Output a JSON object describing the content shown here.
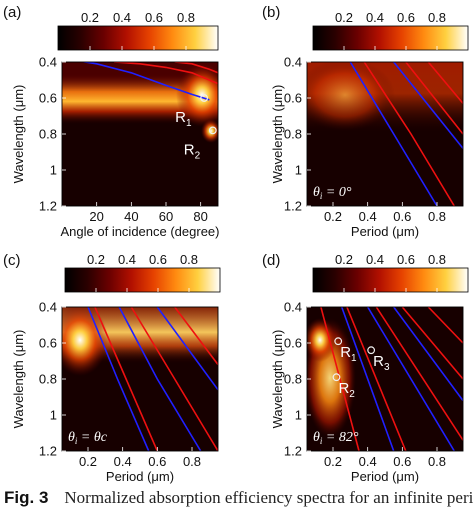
{
  "colormap": [
    "#000000",
    "#2a0000",
    "#6a0000",
    "#b21000",
    "#e64200",
    "#ff8a10",
    "#ffd040",
    "#ffffff"
  ],
  "line_colors": {
    "blue": "#2020ff",
    "red": "#ee1010"
  },
  "caption": {
    "fig_label": "Fig. 3",
    "text": "Normalized absorption efficiency spectra for an infinite peri"
  },
  "chart_data": [
    {
      "panel_label": "(a)",
      "type": "heatmap",
      "title": "",
      "xlabel": "Angle of incidence (degree)",
      "ylabel": "Wavelength (μm)",
      "xlim": [
        0,
        90
      ],
      "ylim": [
        0.4,
        1.2
      ],
      "y_inverted": true,
      "xticks": [
        "20",
        "40",
        "60",
        "80"
      ],
      "yticks": [
        "0.4",
        "0.6",
        "0.8",
        "1",
        "1.2"
      ],
      "colorbar": {
        "ticks": [
          "0.2",
          "0.4",
          "0.6",
          "0.8"
        ],
        "range": [
          0,
          1
        ]
      },
      "features": [
        {
          "name": "bright band",
          "x": [
            0,
            90
          ],
          "wavelength": 0.6
        },
        {
          "name": "hot spot",
          "x": 85,
          "wavelength": 0.78
        }
      ],
      "lines": [
        {
          "color": "blue",
          "x": [
            0,
            20,
            40,
            60,
            75,
            85
          ],
          "y": [
            0.38,
            0.41,
            0.46,
            0.53,
            0.58,
            0.61
          ]
        },
        {
          "color": "red",
          "x": [
            30,
            45,
            60,
            75,
            85,
            90
          ],
          "y": [
            0.4,
            0.41,
            0.43,
            0.46,
            0.5,
            0.52
          ]
        },
        {
          "color": "red",
          "x": [
            65,
            75,
            85,
            90
          ],
          "y": [
            0.4,
            0.41,
            0.44,
            0.46
          ]
        }
      ],
      "markers": [
        {
          "label": "R",
          "sub": "1",
          "x": 82,
          "y": 0.6
        },
        {
          "label": "R",
          "sub": "2",
          "x": 87,
          "y": 0.78
        }
      ],
      "inset_text": ""
    },
    {
      "panel_label": "(b)",
      "type": "heatmap",
      "title": "",
      "xlabel": "Period (μm)",
      "ylabel": "Wavelength (μm)",
      "xlim": [
        0.05,
        0.95
      ],
      "ylim": [
        0.4,
        1.2
      ],
      "y_inverted": true,
      "xticks": [
        "0.2",
        "0.4",
        "0.6",
        "0.8"
      ],
      "yticks": [
        "0.4",
        "0.6",
        "0.8",
        "1",
        "1.2"
      ],
      "colorbar": {
        "ticks": [
          "0.2",
          "0.4",
          "0.6",
          "0.8"
        ],
        "range": [
          0,
          1
        ]
      },
      "features": [
        {
          "name": "bright band",
          "x": [
            0.05,
            0.6
          ],
          "wavelength": 0.6
        }
      ],
      "lines": [
        {
          "color": "blue",
          "x": [
            0.3,
            0.55,
            0.8
          ],
          "y": [
            0.4,
            0.8,
            1.2
          ]
        },
        {
          "color": "red",
          "x": [
            0.38,
            0.65,
            0.9
          ],
          "y": [
            0.4,
            0.8,
            1.2
          ]
        },
        {
          "color": "blue",
          "x": [
            0.55,
            0.95
          ],
          "y": [
            0.4,
            0.88
          ]
        },
        {
          "color": "red",
          "x": [
            0.62,
            0.95
          ],
          "y": [
            0.4,
            0.8
          ]
        },
        {
          "color": "red",
          "x": [
            0.75,
            0.95
          ],
          "y": [
            0.4,
            0.63
          ]
        }
      ],
      "markers": [],
      "inset_text": "θi = 0°"
    },
    {
      "panel_label": "(c)",
      "type": "heatmap",
      "title": "",
      "xlabel": "Period (μm)",
      "ylabel": "Wavelength (μm)",
      "xlim": [
        0.05,
        0.95
      ],
      "ylim": [
        0.4,
        1.2
      ],
      "y_inverted": true,
      "xticks": [
        "0.2",
        "0.4",
        "0.6",
        "0.8"
      ],
      "yticks": [
        "0.4",
        "0.6",
        "0.8",
        "1",
        "1.2"
      ],
      "colorbar": {
        "ticks": [
          "0.2",
          "0.4",
          "0.6",
          "0.8"
        ],
        "range": [
          0,
          1
        ]
      },
      "features": [
        {
          "name": "bright band",
          "x": [
            0.05,
            0.3
          ],
          "wavelength": 0.58
        }
      ],
      "lines": [
        {
          "color": "blue",
          "x": [
            0.2,
            0.37,
            0.55
          ],
          "y": [
            0.4,
            0.8,
            1.2
          ]
        },
        {
          "color": "red",
          "x": [
            0.24,
            0.42,
            0.6
          ],
          "y": [
            0.4,
            0.8,
            1.2
          ]
        },
        {
          "color": "blue",
          "x": [
            0.38,
            0.6,
            0.85
          ],
          "y": [
            0.4,
            0.8,
            1.2
          ]
        },
        {
          "color": "red",
          "x": [
            0.45,
            0.7,
            0.95
          ],
          "y": [
            0.4,
            0.8,
            1.2
          ]
        },
        {
          "color": "blue",
          "x": [
            0.6,
            0.95
          ],
          "y": [
            0.4,
            0.86
          ]
        },
        {
          "color": "red",
          "x": [
            0.7,
            0.95
          ],
          "y": [
            0.4,
            0.72
          ]
        }
      ],
      "markers": [],
      "inset_text": "θi = θc"
    },
    {
      "panel_label": "(d)",
      "type": "heatmap",
      "title": "",
      "xlabel": "Period (μm)",
      "ylabel": "Wavelength (μm)",
      "xlim": [
        0.05,
        0.95
      ],
      "ylim": [
        0.4,
        1.2
      ],
      "y_inverted": true,
      "xticks": [
        "0.2",
        "0.4",
        "0.6",
        "0.8"
      ],
      "yticks": [
        "0.4",
        "0.6",
        "0.8",
        "1",
        "1.2"
      ],
      "colorbar": {
        "ticks": [
          "0.2",
          "0.4",
          "0.6",
          "0.8"
        ],
        "range": [
          0,
          1
        ]
      },
      "features": [
        {
          "name": "bright region",
          "x": [
            0.1,
            0.3
          ],
          "wavelength": 0.75
        }
      ],
      "lines": [
        {
          "color": "red",
          "x": [
            0.13,
            0.35
          ],
          "y": [
            0.4,
            1.2
          ]
        },
        {
          "color": "blue",
          "x": [
            0.25,
            0.55
          ],
          "y": [
            0.4,
            1.2
          ]
        },
        {
          "color": "red",
          "x": [
            0.28,
            0.62
          ],
          "y": [
            0.4,
            1.2
          ]
        },
        {
          "color": "blue",
          "x": [
            0.4,
            0.9
          ],
          "y": [
            0.4,
            1.2
          ]
        },
        {
          "color": "red",
          "x": [
            0.45,
            0.95
          ],
          "y": [
            0.4,
            1.14
          ]
        },
        {
          "color": "blue",
          "x": [
            0.55,
            0.95
          ],
          "y": [
            0.4,
            0.92
          ]
        },
        {
          "color": "red",
          "x": [
            0.6,
            0.95
          ],
          "y": [
            0.4,
            0.8
          ]
        },
        {
          "color": "red",
          "x": [
            0.75,
            0.95
          ],
          "y": [
            0.4,
            0.6
          ]
        }
      ],
      "markers": [
        {
          "label": "R",
          "sub": "1",
          "x": 0.23,
          "y": 0.59
        },
        {
          "label": "R",
          "sub": "2",
          "x": 0.22,
          "y": 0.79
        },
        {
          "label": "R",
          "sub": "3",
          "x": 0.42,
          "y": 0.64
        }
      ],
      "inset_text": "θi = 82°"
    }
  ]
}
